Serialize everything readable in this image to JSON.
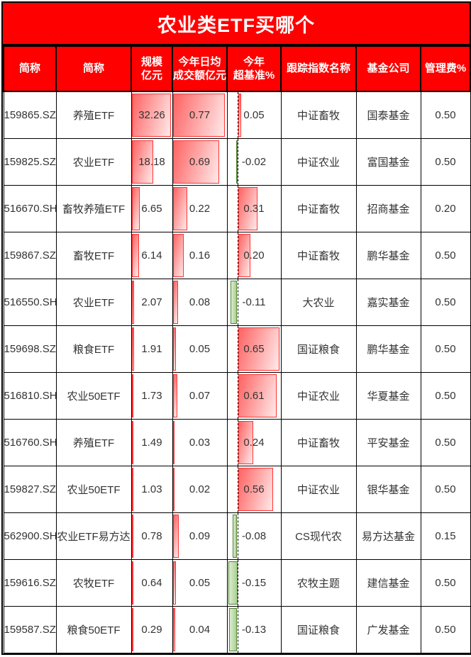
{
  "title": "农业类ETF买哪个",
  "colors": {
    "header_background": "#fe0000",
    "header_text": "#ffffff",
    "grid_border": "#000000",
    "cell_text": "#333333",
    "positive_bar_border": "#ff3333",
    "positive_bar_fill_start": "#ff6363",
    "positive_bar_fill_end": "#ffeaea",
    "negative_bar_border": "#538135",
    "negative_bar_fill_start": "#a9d18e",
    "negative_bar_fill_end": "#ddecd3"
  },
  "table": {
    "columns": [
      {
        "key": "code",
        "label": "简称"
      },
      {
        "key": "name",
        "label": "简称"
      },
      {
        "key": "scale",
        "label": "规模\n亿元"
      },
      {
        "key": "turnover",
        "label": "今年日均\n成交额亿元"
      },
      {
        "key": "excess",
        "label": "今年\n超基准%"
      },
      {
        "key": "index_name",
        "label": "跟踪指数名称"
      },
      {
        "key": "company",
        "label": "基金公司"
      },
      {
        "key": "fee",
        "label": "管理费%"
      }
    ],
    "rows": [
      {
        "code": "159865.SZ",
        "name": "养殖ETF",
        "scale": "32.26",
        "turnover": "0.77",
        "excess": "0.05",
        "index_name": "中证畜牧",
        "company": "国泰基金",
        "fee": "0.50"
      },
      {
        "code": "159825.SZ",
        "name": "农业ETF",
        "scale": "18.18",
        "turnover": "0.69",
        "excess": "-0.02",
        "index_name": "中证农业",
        "company": "富国基金",
        "fee": "0.50"
      },
      {
        "code": "516670.SH",
        "name": "畜牧养殖ETF",
        "scale": "6.65",
        "turnover": "0.22",
        "excess": "0.31",
        "index_name": "中证畜牧",
        "company": "招商基金",
        "fee": "0.20"
      },
      {
        "code": "159867.SZ",
        "name": "畜牧ETF",
        "scale": "6.14",
        "turnover": "0.16",
        "excess": "0.20",
        "index_name": "中证畜牧",
        "company": "鹏华基金",
        "fee": "0.50"
      },
      {
        "code": "516550.SH",
        "name": "农业ETF",
        "scale": "2.07",
        "turnover": "0.08",
        "excess": "-0.11",
        "index_name": "大农业",
        "company": "嘉实基金",
        "fee": "0.50"
      },
      {
        "code": "159698.SZ",
        "name": "粮食ETF",
        "scale": "1.91",
        "turnover": "0.05",
        "excess": "0.65",
        "index_name": "国证粮食",
        "company": "鹏华基金",
        "fee": "0.50"
      },
      {
        "code": "516810.SH",
        "name": "农业50ETF",
        "scale": "1.73",
        "turnover": "0.07",
        "excess": "0.61",
        "index_name": "中证农业",
        "company": "华夏基金",
        "fee": "0.50"
      },
      {
        "code": "516760.SH",
        "name": "养殖ETF",
        "scale": "1.49",
        "turnover": "0.03",
        "excess": "0.24",
        "index_name": "中证畜牧",
        "company": "平安基金",
        "fee": "0.50"
      },
      {
        "code": "159827.SZ",
        "name": "农业50ETF",
        "scale": "1.03",
        "turnover": "0.02",
        "excess": "0.56",
        "index_name": "中证农业",
        "company": "银华基金",
        "fee": "0.50"
      },
      {
        "code": "562900.SH",
        "name": "农业ETF易方达",
        "scale": "0.78",
        "turnover": "0.09",
        "excess": "-0.08",
        "index_name": "CS现代农",
        "company": "易方达基金",
        "fee": "0.15"
      },
      {
        "code": "159616.SZ",
        "name": "农牧ETF",
        "scale": "0.64",
        "turnover": "0.05",
        "excess": "-0.15",
        "index_name": "农牧主题",
        "company": "建信基金",
        "fee": "0.50"
      },
      {
        "code": "159587.SZ",
        "name": "粮食50ETF",
        "scale": "0.29",
        "turnover": "0.04",
        "excess": "-0.13",
        "index_name": "国证粮食",
        "company": "广发基金",
        "fee": "0.50"
      }
    ]
  },
  "chart_data": {
    "type": "table",
    "title": "农业类ETF买哪个",
    "categories": [
      "159865.SZ",
      "159825.SZ",
      "516670.SH",
      "159867.SZ",
      "516550.SH",
      "159698.SZ",
      "516810.SH",
      "516760.SH",
      "159827.SZ",
      "562900.SH",
      "159616.SZ",
      "159587.SZ"
    ],
    "series": [
      {
        "name": "规模亿元",
        "values": [
          32.26,
          18.18,
          6.65,
          6.14,
          2.07,
          1.91,
          1.73,
          1.49,
          1.03,
          0.78,
          0.64,
          0.29
        ]
      },
      {
        "name": "今年日均成交额亿元",
        "values": [
          0.77,
          0.69,
          0.22,
          0.16,
          0.08,
          0.05,
          0.07,
          0.03,
          0.02,
          0.09,
          0.05,
          0.04
        ]
      },
      {
        "name": "今年超基准%",
        "values": [
          0.05,
          -0.02,
          0.31,
          0.2,
          -0.11,
          0.65,
          0.61,
          0.24,
          0.56,
          -0.08,
          -0.15,
          -0.13
        ]
      },
      {
        "name": "管理费%",
        "values": [
          0.5,
          0.5,
          0.2,
          0.5,
          0.5,
          0.5,
          0.5,
          0.5,
          0.5,
          0.15,
          0.5,
          0.5
        ]
      }
    ],
    "databar_scaling": {
      "scale_max": 32.26,
      "turnover_max": 0.77,
      "excess_positive_max": 0.65,
      "excess_negative_min": -0.15
    },
    "legend_position": "none",
    "grid": true
  }
}
